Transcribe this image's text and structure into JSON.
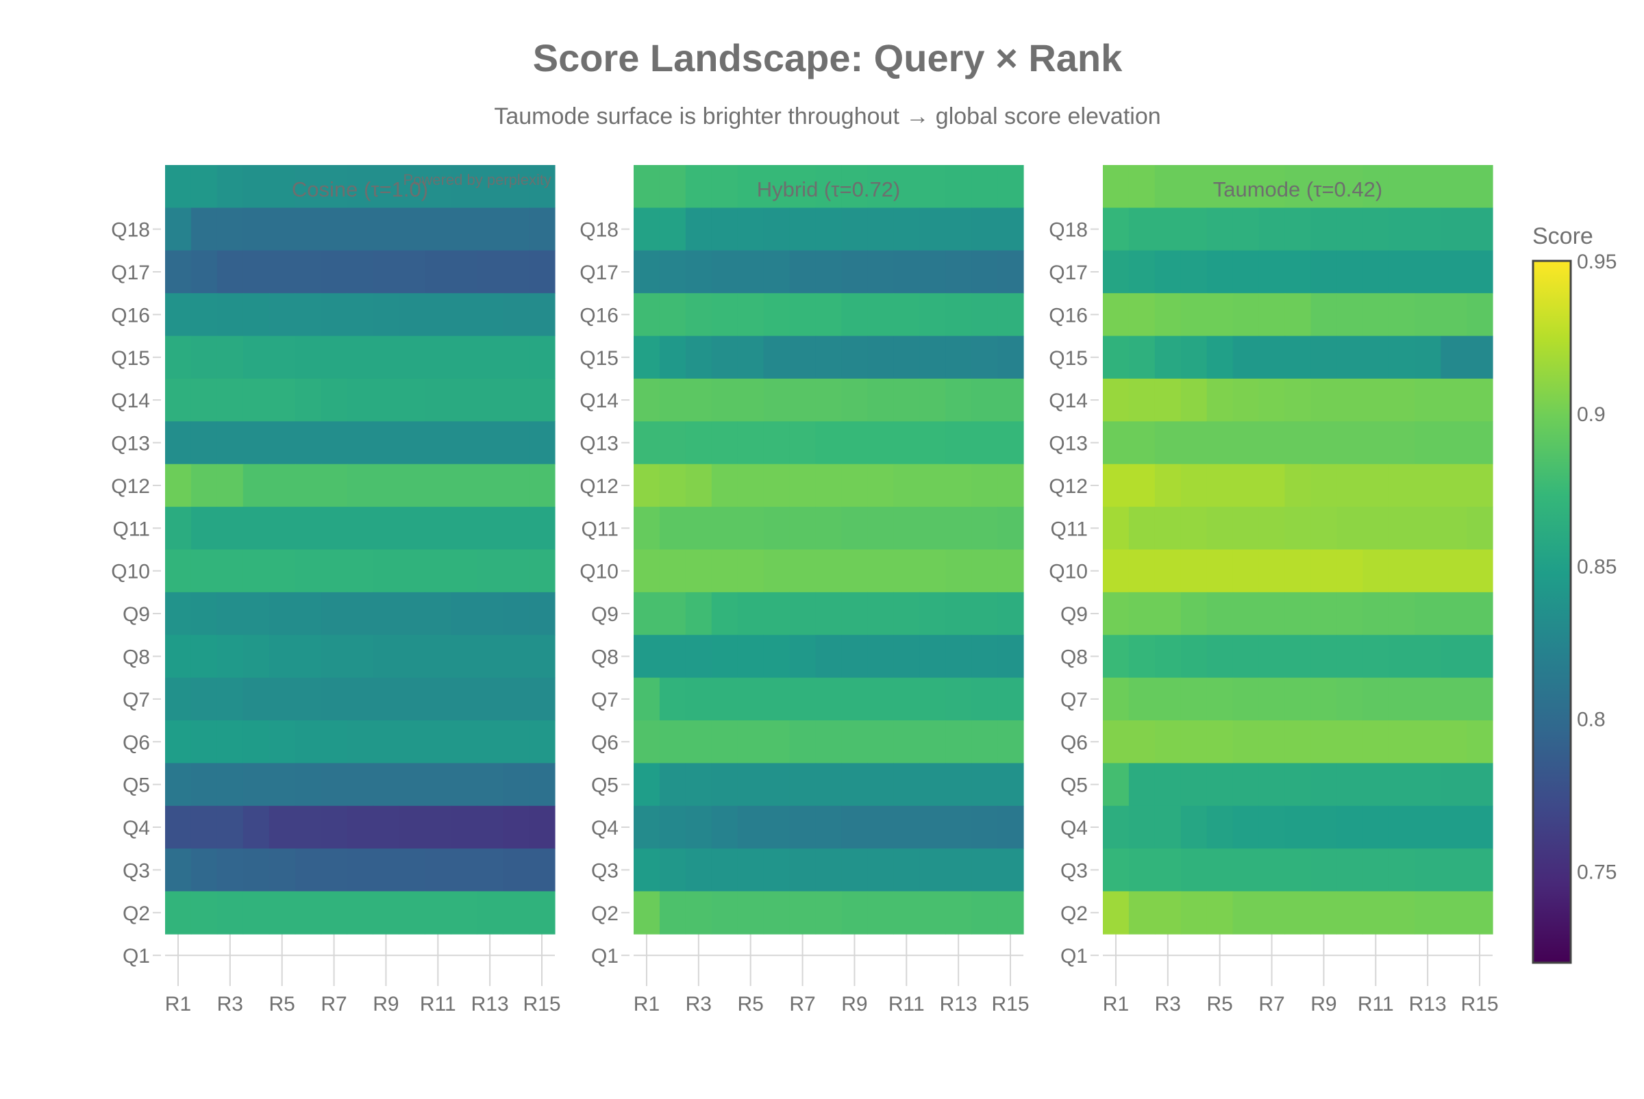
{
  "title": "Score Landscape: Query × Rank",
  "subtitle": "Taumode surface is brighter throughout → global score elevation",
  "watermark": "Powered by perplexity",
  "chart_data": {
    "type": "heatmap",
    "colorscale": "Viridis",
    "zlim": [
      0.72,
      0.95
    ],
    "colorbar": {
      "title": "Score",
      "ticks": [
        "0.95",
        "0.9",
        "0.85",
        "0.8",
        "0.75"
      ],
      "tick_values": [
        0.95,
        0.9,
        0.85,
        0.8,
        0.75
      ]
    },
    "y_tick_labels": [
      "Q1",
      "Q2",
      "Q3",
      "Q4",
      "Q5",
      "Q6",
      "Q7",
      "Q8",
      "Q9",
      "Q10",
      "Q11",
      "Q12",
      "Q13",
      "Q14",
      "Q15",
      "Q16",
      "Q17",
      "Q18"
    ],
    "x_tick_labels": [
      "R1",
      "R3",
      "R5",
      "R7",
      "R9",
      "R11",
      "R13",
      "R15"
    ],
    "row_order": "top-to-bottom",
    "panels": [
      {
        "title": "Cosine (τ=1.0)",
        "z": [
          [
            0.842,
            0.842,
            0.838,
            0.836,
            0.836,
            0.835,
            0.835,
            0.834,
            0.834,
            0.834,
            0.834,
            0.833,
            0.833,
            0.833,
            0.833
          ],
          [
            0.822,
            0.806,
            0.806,
            0.805,
            0.805,
            0.805,
            0.805,
            0.805,
            0.805,
            0.805,
            0.805,
            0.805,
            0.805,
            0.805,
            0.804
          ],
          [
            0.8,
            0.796,
            0.791,
            0.791,
            0.791,
            0.791,
            0.79,
            0.79,
            0.789,
            0.789,
            0.788,
            0.788,
            0.787,
            0.787,
            0.786
          ],
          [
            0.838,
            0.837,
            0.836,
            0.836,
            0.835,
            0.835,
            0.834,
            0.834,
            0.833,
            0.832,
            0.832,
            0.832,
            0.832,
            0.831,
            0.831
          ],
          [
            0.862,
            0.86,
            0.86,
            0.858,
            0.858,
            0.857,
            0.857,
            0.857,
            0.857,
            0.857,
            0.857,
            0.857,
            0.857,
            0.857,
            0.857
          ],
          [
            0.866,
            0.866,
            0.866,
            0.866,
            0.866,
            0.864,
            0.862,
            0.861,
            0.861,
            0.861,
            0.86,
            0.86,
            0.86,
            0.86,
            0.86
          ],
          [
            0.833,
            0.833,
            0.833,
            0.833,
            0.833,
            0.833,
            0.833,
            0.833,
            0.833,
            0.833,
            0.833,
            0.833,
            0.833,
            0.833,
            0.833
          ],
          [
            0.898,
            0.892,
            0.892,
            0.884,
            0.884,
            0.884,
            0.884,
            0.883,
            0.883,
            0.883,
            0.883,
            0.883,
            0.883,
            0.883,
            0.883
          ],
          [
            0.862,
            0.856,
            0.856,
            0.856,
            0.856,
            0.856,
            0.856,
            0.856,
            0.856,
            0.856,
            0.856,
            0.856,
            0.856,
            0.856,
            0.856
          ],
          [
            0.87,
            0.87,
            0.87,
            0.87,
            0.87,
            0.869,
            0.869,
            0.869,
            0.868,
            0.868,
            0.868,
            0.868,
            0.867,
            0.867,
            0.867
          ],
          [
            0.838,
            0.836,
            0.834,
            0.834,
            0.832,
            0.832,
            0.83,
            0.83,
            0.83,
            0.83,
            0.83,
            0.829,
            0.829,
            0.828,
            0.828
          ],
          [
            0.846,
            0.846,
            0.844,
            0.842,
            0.84,
            0.84,
            0.838,
            0.838,
            0.836,
            0.836,
            0.836,
            0.836,
            0.836,
            0.836,
            0.836
          ],
          [
            0.836,
            0.834,
            0.834,
            0.831,
            0.831,
            0.831,
            0.83,
            0.83,
            0.83,
            0.83,
            0.83,
            0.83,
            0.83,
            0.83,
            0.83
          ],
          [
            0.848,
            0.847,
            0.847,
            0.846,
            0.845,
            0.843,
            0.843,
            0.842,
            0.842,
            0.842,
            0.842,
            0.842,
            0.842,
            0.842,
            0.842
          ],
          [
            0.812,
            0.81,
            0.81,
            0.809,
            0.809,
            0.808,
            0.807,
            0.807,
            0.807,
            0.807,
            0.807,
            0.807,
            0.807,
            0.806,
            0.806
          ],
          [
            0.778,
            0.777,
            0.777,
            0.77,
            0.764,
            0.764,
            0.763,
            0.762,
            0.762,
            0.761,
            0.761,
            0.76,
            0.76,
            0.759,
            0.758
          ],
          [
            0.804,
            0.798,
            0.795,
            0.794,
            0.793,
            0.791,
            0.791,
            0.79,
            0.79,
            0.79,
            0.789,
            0.789,
            0.789,
            0.788,
            0.788
          ],
          [
            0.87,
            0.87,
            0.869,
            0.869,
            0.869,
            0.869,
            0.869,
            0.869,
            0.869,
            0.869,
            0.869,
            0.869,
            0.868,
            0.868,
            0.868
          ]
        ]
      },
      {
        "title": "Hybrid (τ=0.72)",
        "z": [
          [
            0.88,
            0.88,
            0.875,
            0.875,
            0.874,
            0.874,
            0.874,
            0.873,
            0.873,
            0.872,
            0.872,
            0.872,
            0.871,
            0.871,
            0.871
          ],
          [
            0.852,
            0.852,
            0.84,
            0.84,
            0.84,
            0.839,
            0.839,
            0.839,
            0.838,
            0.838,
            0.838,
            0.837,
            0.837,
            0.836,
            0.836
          ],
          [
            0.826,
            0.824,
            0.822,
            0.82,
            0.82,
            0.82,
            0.815,
            0.815,
            0.813,
            0.813,
            0.812,
            0.812,
            0.811,
            0.81,
            0.809
          ],
          [
            0.878,
            0.878,
            0.876,
            0.875,
            0.875,
            0.874,
            0.873,
            0.873,
            0.87,
            0.87,
            0.87,
            0.869,
            0.868,
            0.867,
            0.867
          ],
          [
            0.851,
            0.843,
            0.838,
            0.834,
            0.834,
            0.828,
            0.827,
            0.827,
            0.826,
            0.825,
            0.825,
            0.825,
            0.825,
            0.824,
            0.822
          ],
          [
            0.892,
            0.891,
            0.891,
            0.89,
            0.89,
            0.889,
            0.889,
            0.889,
            0.888,
            0.887,
            0.887,
            0.887,
            0.885,
            0.884,
            0.884
          ],
          [
            0.876,
            0.876,
            0.875,
            0.875,
            0.875,
            0.875,
            0.875,
            0.874,
            0.874,
            0.874,
            0.874,
            0.874,
            0.873,
            0.873,
            0.873
          ],
          [
            0.91,
            0.908,
            0.906,
            0.9,
            0.9,
            0.9,
            0.9,
            0.9,
            0.9,
            0.9,
            0.899,
            0.899,
            0.899,
            0.898,
            0.898
          ],
          [
            0.895,
            0.891,
            0.891,
            0.891,
            0.891,
            0.89,
            0.89,
            0.89,
            0.889,
            0.889,
            0.889,
            0.889,
            0.889,
            0.889,
            0.888
          ],
          [
            0.9,
            0.9,
            0.9,
            0.9,
            0.9,
            0.899,
            0.899,
            0.899,
            0.899,
            0.899,
            0.899,
            0.899,
            0.898,
            0.898,
            0.898
          ],
          [
            0.882,
            0.882,
            0.878,
            0.87,
            0.868,
            0.868,
            0.867,
            0.867,
            0.867,
            0.867,
            0.867,
            0.866,
            0.865,
            0.865,
            0.864
          ],
          [
            0.845,
            0.845,
            0.845,
            0.846,
            0.846,
            0.846,
            0.843,
            0.84,
            0.84,
            0.84,
            0.84,
            0.84,
            0.84,
            0.84,
            0.839
          ],
          [
            0.882,
            0.869,
            0.868,
            0.868,
            0.868,
            0.868,
            0.868,
            0.868,
            0.868,
            0.868,
            0.868,
            0.868,
            0.867,
            0.866,
            0.866
          ],
          [
            0.886,
            0.885,
            0.885,
            0.885,
            0.885,
            0.885,
            0.883,
            0.883,
            0.883,
            0.883,
            0.883,
            0.883,
            0.883,
            0.883,
            0.883
          ],
          [
            0.848,
            0.838,
            0.838,
            0.837,
            0.837,
            0.837,
            0.837,
            0.837,
            0.837,
            0.837,
            0.837,
            0.837,
            0.837,
            0.837,
            0.837
          ],
          [
            0.83,
            0.828,
            0.826,
            0.822,
            0.818,
            0.818,
            0.816,
            0.816,
            0.814,
            0.814,
            0.814,
            0.814,
            0.814,
            0.813,
            0.812
          ],
          [
            0.846,
            0.842,
            0.84,
            0.84,
            0.84,
            0.84,
            0.838,
            0.838,
            0.838,
            0.838,
            0.838,
            0.838,
            0.838,
            0.838,
            0.838
          ],
          [
            0.897,
            0.884,
            0.884,
            0.883,
            0.883,
            0.883,
            0.883,
            0.883,
            0.882,
            0.882,
            0.882,
            0.882,
            0.882,
            0.881,
            0.881
          ]
        ]
      },
      {
        "title": "Taumode (τ=0.42)",
        "z": [
          [
            0.9,
            0.9,
            0.897,
            0.897,
            0.897,
            0.897,
            0.897,
            0.896,
            0.896,
            0.896,
            0.895,
            0.895,
            0.895,
            0.895,
            0.895
          ],
          [
            0.872,
            0.868,
            0.868,
            0.868,
            0.866,
            0.866,
            0.864,
            0.864,
            0.862,
            0.862,
            0.862,
            0.861,
            0.861,
            0.86,
            0.86
          ],
          [
            0.855,
            0.853,
            0.85,
            0.85,
            0.848,
            0.848,
            0.848,
            0.848,
            0.846,
            0.846,
            0.846,
            0.846,
            0.846,
            0.846,
            0.846
          ],
          [
            0.902,
            0.902,
            0.9,
            0.899,
            0.899,
            0.898,
            0.898,
            0.898,
            0.893,
            0.893,
            0.893,
            0.893,
            0.892,
            0.892,
            0.891
          ],
          [
            0.868,
            0.866,
            0.858,
            0.856,
            0.85,
            0.843,
            0.843,
            0.843,
            0.842,
            0.842,
            0.842,
            0.842,
            0.841,
            0.829,
            0.829
          ],
          [
            0.914,
            0.913,
            0.913,
            0.91,
            0.905,
            0.904,
            0.903,
            0.902,
            0.901,
            0.901,
            0.901,
            0.901,
            0.9,
            0.9,
            0.9
          ],
          [
            0.898,
            0.898,
            0.896,
            0.896,
            0.896,
            0.896,
            0.896,
            0.896,
            0.896,
            0.896,
            0.896,
            0.896,
            0.895,
            0.895,
            0.895
          ],
          [
            0.924,
            0.924,
            0.92,
            0.918,
            0.918,
            0.918,
            0.918,
            0.914,
            0.913,
            0.913,
            0.913,
            0.913,
            0.913,
            0.913,
            0.913
          ],
          [
            0.918,
            0.913,
            0.913,
            0.913,
            0.912,
            0.912,
            0.912,
            0.911,
            0.911,
            0.91,
            0.91,
            0.91,
            0.91,
            0.91,
            0.909
          ],
          [
            0.925,
            0.925,
            0.925,
            0.925,
            0.925,
            0.925,
            0.925,
            0.925,
            0.925,
            0.925,
            0.923,
            0.923,
            0.923,
            0.923,
            0.923
          ],
          [
            0.9,
            0.899,
            0.899,
            0.895,
            0.893,
            0.893,
            0.893,
            0.893,
            0.893,
            0.893,
            0.892,
            0.892,
            0.891,
            0.891,
            0.891
          ],
          [
            0.875,
            0.872,
            0.87,
            0.868,
            0.866,
            0.866,
            0.866,
            0.866,
            0.866,
            0.866,
            0.866,
            0.865,
            0.865,
            0.864,
            0.864
          ],
          [
            0.898,
            0.895,
            0.895,
            0.895,
            0.895,
            0.894,
            0.894,
            0.894,
            0.894,
            0.893,
            0.892,
            0.892,
            0.892,
            0.892,
            0.892
          ],
          [
            0.906,
            0.906,
            0.905,
            0.905,
            0.905,
            0.904,
            0.904,
            0.904,
            0.904,
            0.904,
            0.904,
            0.904,
            0.904,
            0.904,
            0.903
          ],
          [
            0.88,
            0.862,
            0.862,
            0.862,
            0.862,
            0.862,
            0.862,
            0.862,
            0.861,
            0.861,
            0.861,
            0.861,
            0.861,
            0.86,
            0.86
          ],
          [
            0.864,
            0.862,
            0.862,
            0.856,
            0.852,
            0.85,
            0.85,
            0.849,
            0.849,
            0.848,
            0.848,
            0.848,
            0.848,
            0.848,
            0.848
          ],
          [
            0.872,
            0.87,
            0.87,
            0.868,
            0.868,
            0.868,
            0.868,
            0.868,
            0.867,
            0.867,
            0.867,
            0.867,
            0.866,
            0.866,
            0.866
          ],
          [
            0.916,
            0.906,
            0.906,
            0.904,
            0.904,
            0.901,
            0.901,
            0.901,
            0.901,
            0.901,
            0.901,
            0.901,
            0.9,
            0.9,
            0.9
          ]
        ]
      }
    ]
  }
}
